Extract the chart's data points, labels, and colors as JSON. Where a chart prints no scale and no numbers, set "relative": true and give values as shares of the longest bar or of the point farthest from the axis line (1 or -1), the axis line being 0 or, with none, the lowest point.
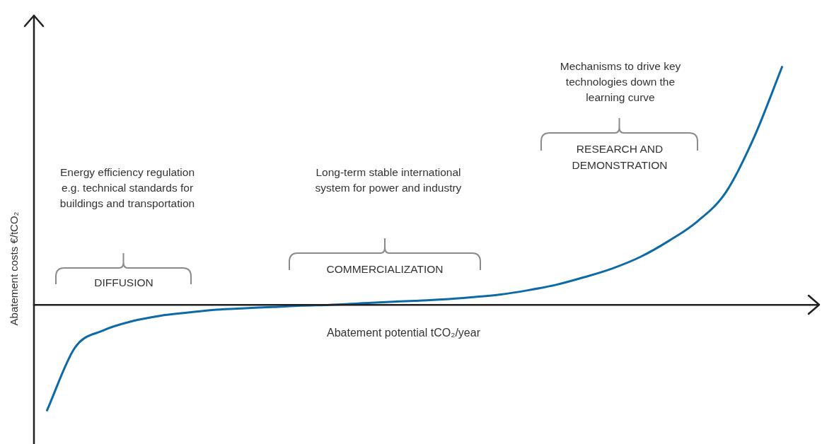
{
  "chart_data": {
    "type": "line",
    "xlabel": "Abatement potential tCO₂/year",
    "ylabel": "Abatement costs €/tCO₂",
    "categories": [
      null,
      null,
      null,
      null,
      null,
      null,
      null,
      null,
      null,
      null,
      null,
      null,
      null,
      null,
      null,
      null,
      null,
      null,
      null,
      null,
      null,
      null,
      null,
      null,
      null,
      null,
      null
    ],
    "series": [
      {
        "color": "#0d6aa8",
        "values": [
          -0.445,
          -0.179,
          -0.107,
          -0.069,
          -0.046,
          -0.032,
          -0.02,
          -0.014,
          -0.009,
          -0.003,
          0,
          0.006,
          0.012,
          0.017,
          0.023,
          0.032,
          0.043,
          0.061,
          0.084,
          0.116,
          0.153,
          0.202,
          0.269,
          0.35,
          0.471,
          0.702,
          1
        ]
      }
    ],
    "relative": true,
    "legend": false,
    "grid": false,
    "marker": "none",
    "annotations": [
      "Energy efficiency regulation e.g. technical standards for buildings and transportation",
      "DIFFUSION",
      "Long-term stable international system for power and industry",
      "COMMERCIALIZATION",
      "Mechanisms to drive key technologies down the learning curve",
      "RESEARCH AND DEMONSTRATION"
    ]
  }
}
